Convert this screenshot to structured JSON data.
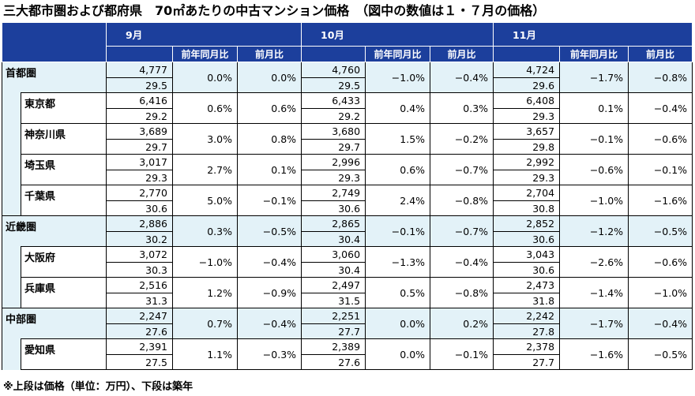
{
  "title": "三大都市圏および都府県　70㎡あたりの中古マンション価格　（図中の数値は１・７月の価格）",
  "note": "※上段は価格（単位：万円）、下段は築年",
  "months": [
    "9月",
    "10月",
    "11月"
  ],
  "subheaders": [
    "前年同月比",
    "前月比"
  ],
  "rows": [
    {
      "name": "首都圏",
      "type": "region",
      "price": [
        "4,777",
        "4,760",
        "4,724"
      ],
      "age": [
        "29.5",
        "29.5",
        "29.6"
      ],
      "yoy": [
        "0.0%",
        "−1.0%",
        "−1.7%"
      ],
      "mom": [
        "0.0%",
        "−0.4%",
        "−0.8%"
      ]
    },
    {
      "name": "東京都",
      "type": "sub",
      "price": [
        "6,416",
        "6,433",
        "6,408"
      ],
      "age": [
        "29.2",
        "29.2",
        "29.3"
      ],
      "yoy": [
        "0.6%",
        "0.4%",
        "0.1%"
      ],
      "mom": [
        "0.6%",
        "0.3%",
        "−0.4%"
      ]
    },
    {
      "name": "神奈川県",
      "type": "sub",
      "price": [
        "3,689",
        "3,680",
        "3,657"
      ],
      "age": [
        "29.7",
        "29.7",
        "29.8"
      ],
      "yoy": [
        "3.0%",
        "1.5%",
        "−0.1%"
      ],
      "mom": [
        "0.8%",
        "−0.2%",
        "−0.6%"
      ]
    },
    {
      "name": "埼玉県",
      "type": "sub",
      "price": [
        "3,017",
        "2,996",
        "2,992"
      ],
      "age": [
        "29.3",
        "29.3",
        "29.3"
      ],
      "yoy": [
        "2.7%",
        "0.6%",
        "−0.6%"
      ],
      "mom": [
        "0.1%",
        "−0.7%",
        "−0.1%"
      ]
    },
    {
      "name": "千葉県",
      "type": "sub",
      "price": [
        "2,770",
        "2,749",
        "2,704"
      ],
      "age": [
        "30.6",
        "30.6",
        "30.8"
      ],
      "yoy": [
        "5.0%",
        "2.4%",
        "−1.0%"
      ],
      "mom": [
        "−0.1%",
        "−0.8%",
        "−1.6%"
      ]
    },
    {
      "name": "近畿圏",
      "type": "region",
      "price": [
        "2,886",
        "2,865",
        "2,852"
      ],
      "age": [
        "30.2",
        "30.4",
        "30.6"
      ],
      "yoy": [
        "0.3%",
        "−0.1%",
        "−1.2%"
      ],
      "mom": [
        "−0.5%",
        "−0.7%",
        "−0.5%"
      ]
    },
    {
      "name": "大阪府",
      "type": "sub",
      "price": [
        "3,072",
        "3,060",
        "3,043"
      ],
      "age": [
        "30.3",
        "30.4",
        "30.6"
      ],
      "yoy": [
        "−1.0%",
        "−1.3%",
        "−2.6%"
      ],
      "mom": [
        "−0.4%",
        "−0.4%",
        "−0.6%"
      ]
    },
    {
      "name": "兵庫県",
      "type": "sub",
      "price": [
        "2,516",
        "2,497",
        "2,473"
      ],
      "age": [
        "31.3",
        "31.5",
        "31.8"
      ],
      "yoy": [
        "1.2%",
        "0.5%",
        "−1.4%"
      ],
      "mom": [
        "−0.9%",
        "−0.8%",
        "−1.0%"
      ]
    },
    {
      "name": "中部圏",
      "type": "region",
      "price": [
        "2,247",
        "2,251",
        "2,242"
      ],
      "age": [
        "27.6",
        "27.7",
        "27.8"
      ],
      "yoy": [
        "0.7%",
        "0.0%",
        "−1.7%"
      ],
      "mom": [
        "−0.4%",
        "0.2%",
        "−0.4%"
      ]
    },
    {
      "name": "愛知県",
      "type": "sub",
      "price": [
        "2,391",
        "2,389",
        "2,378"
      ],
      "age": [
        "27.5",
        "27.6",
        "27.7"
      ],
      "yoy": [
        "1.1%",
        "0.0%",
        "−1.6%"
      ],
      "mom": [
        "−0.3%",
        "−0.1%",
        "−0.5%"
      ]
    }
  ]
}
